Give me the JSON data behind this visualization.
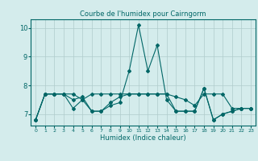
{
  "title": "Courbe de l'humidex pour Cairngorm",
  "xlabel": "Humidex (Indice chaleur)",
  "ylabel": "",
  "xlim": [
    -0.5,
    23.5
  ],
  "ylim": [
    6.6,
    10.3
  ],
  "yticks": [
    7,
    8,
    9,
    10
  ],
  "xticks": [
    0,
    1,
    2,
    3,
    4,
    5,
    6,
    7,
    8,
    9,
    10,
    11,
    12,
    13,
    14,
    15,
    16,
    17,
    18,
    19,
    20,
    21,
    22,
    23
  ],
  "background_color": "#d4ecec",
  "grid_color": "#b0cccc",
  "line_color": "#006666",
  "series": [
    [
      6.8,
      7.7,
      7.7,
      7.7,
      7.2,
      7.5,
      7.1,
      7.1,
      7.3,
      7.4,
      8.5,
      10.1,
      8.5,
      9.4,
      7.5,
      7.1,
      7.1,
      7.1,
      7.9,
      6.8,
      7.0,
      7.1,
      7.2,
      7.2
    ],
    [
      6.8,
      7.7,
      7.7,
      7.7,
      7.7,
      7.5,
      7.7,
      7.7,
      7.7,
      7.7,
      7.7,
      7.7,
      7.7,
      7.7,
      7.7,
      7.6,
      7.5,
      7.3,
      7.7,
      7.7,
      7.7,
      7.2,
      7.2,
      7.2
    ],
    [
      6.8,
      7.7,
      7.7,
      7.7,
      7.5,
      7.6,
      7.1,
      7.1,
      7.4,
      7.6,
      7.7,
      7.7,
      7.7,
      7.7,
      7.7,
      7.1,
      7.1,
      7.1,
      7.9,
      6.8,
      7.0,
      7.1,
      7.2,
      7.2
    ]
  ]
}
